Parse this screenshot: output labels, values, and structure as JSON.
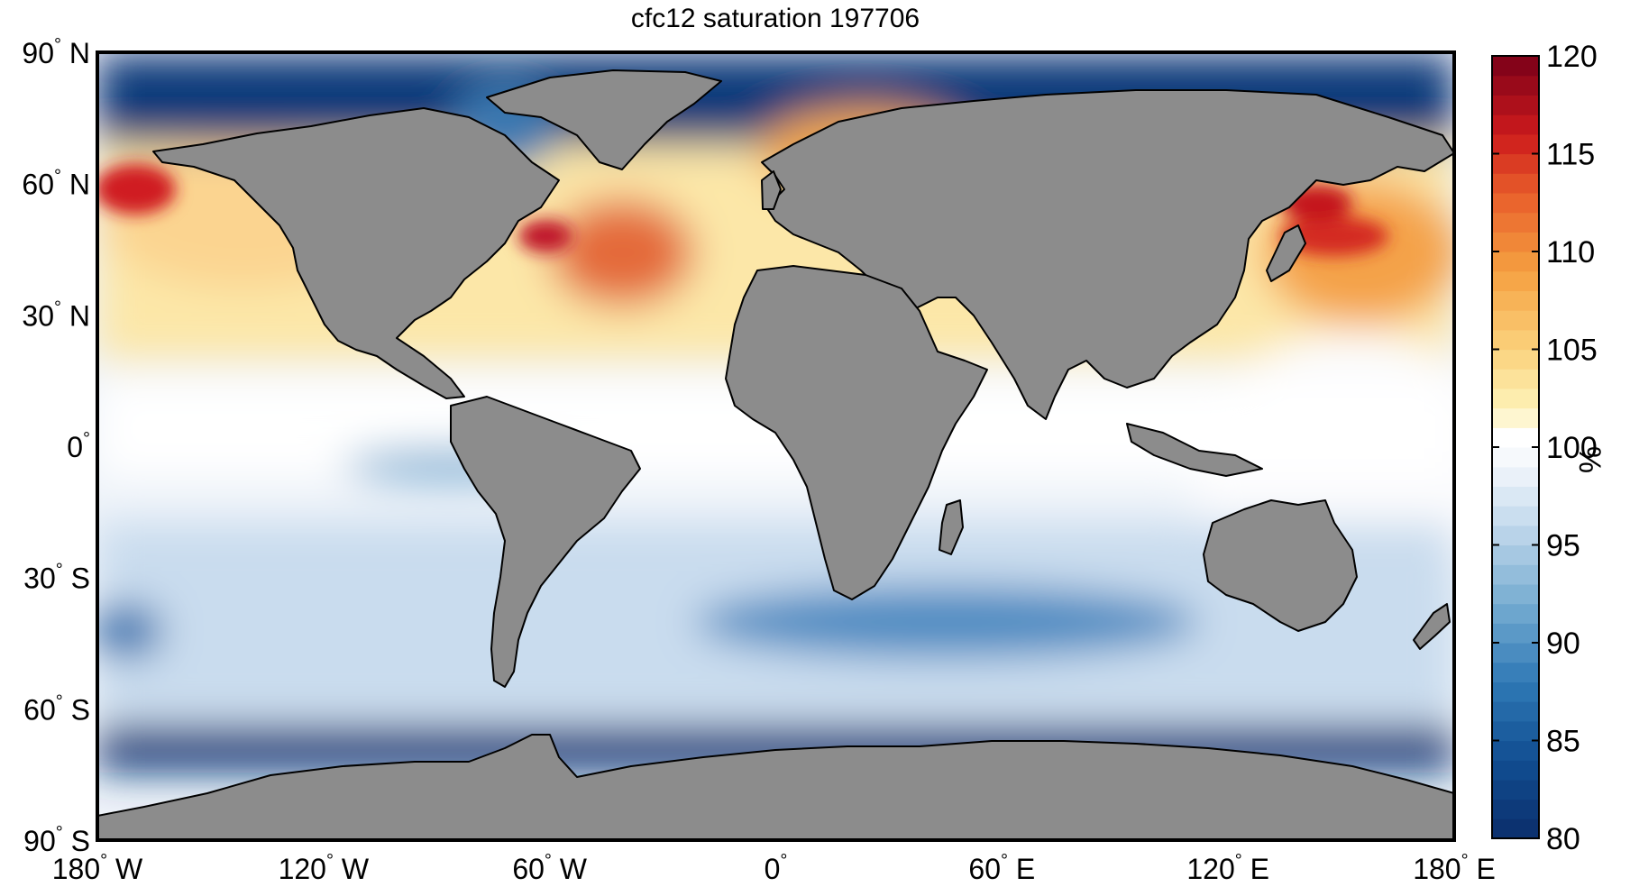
{
  "title": "cfc12 saturation 197706",
  "lat_labels": [
    {
      "deg": "90",
      "hemi": "N",
      "value": 90
    },
    {
      "deg": "60",
      "hemi": "N",
      "value": 60
    },
    {
      "deg": "30",
      "hemi": "N",
      "value": 30
    },
    {
      "deg": "0",
      "hemi": "",
      "value": 0
    },
    {
      "deg": "30",
      "hemi": "S",
      "value": -30
    },
    {
      "deg": "60",
      "hemi": "S",
      "value": -60
    },
    {
      "deg": "90",
      "hemi": "S",
      "value": -90
    }
  ],
  "lon_labels": [
    {
      "deg": "180",
      "hemi": "W",
      "value": -180
    },
    {
      "deg": "120",
      "hemi": "W",
      "value": -120
    },
    {
      "deg": "60",
      "hemi": "W",
      "value": -60
    },
    {
      "deg": "0",
      "hemi": "",
      "value": 0
    },
    {
      "deg": "60",
      "hemi": "E",
      "value": 60
    },
    {
      "deg": "120",
      "hemi": "E",
      "value": 120
    },
    {
      "deg": "180",
      "hemi": "E",
      "value": 180
    }
  ],
  "colorbar": {
    "min": 80,
    "max": 120,
    "steps": 40,
    "ticks": [
      "80",
      "85",
      "90",
      "95",
      "100",
      "105",
      "110",
      "115",
      "120"
    ],
    "unit": "%",
    "stops": [
      {
        "v": 80,
        "c": "#0b2e6b"
      },
      {
        "v": 84,
        "c": "#114e92"
      },
      {
        "v": 88,
        "c": "#2f79b5"
      },
      {
        "v": 92,
        "c": "#76acd1"
      },
      {
        "v": 96,
        "c": "#c2d9ec"
      },
      {
        "v": 99,
        "c": "#f2f6fb"
      },
      {
        "v": 100.5,
        "c": "#ffffff"
      },
      {
        "v": 102,
        "c": "#fdf2b8"
      },
      {
        "v": 105,
        "c": "#fbd27c"
      },
      {
        "v": 109,
        "c": "#f5a041"
      },
      {
        "v": 113,
        "c": "#e85d2a"
      },
      {
        "v": 116,
        "c": "#cc1a1c"
      },
      {
        "v": 120,
        "c": "#7a0018"
      }
    ]
  },
  "colors": {
    "land": "#8c8c8c",
    "coast": "#000000",
    "background": "#ffffff"
  }
}
